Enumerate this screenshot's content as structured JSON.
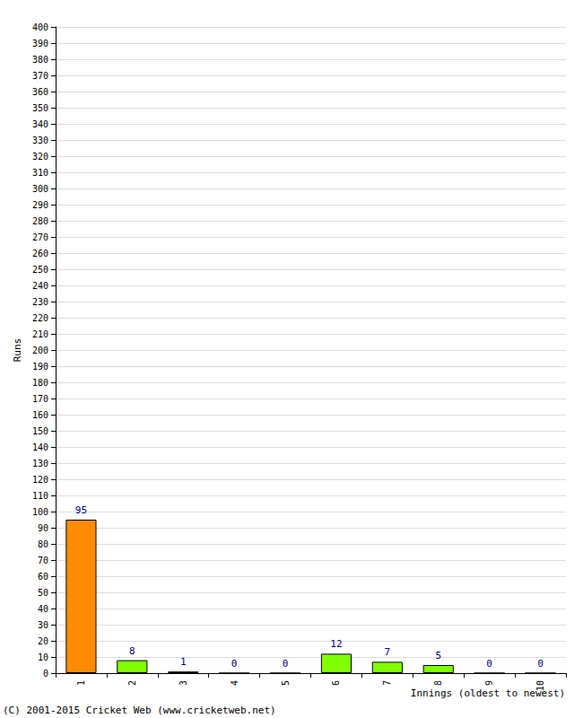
{
  "chart_data": {
    "type": "bar",
    "x_label": "Innings (oldest to newest)",
    "y_label": "Runs",
    "annotations": [
      "(C) 2001-2015 Cricket Web (www.cricketweb.net)"
    ],
    "categories": [
      "1",
      "2",
      "3",
      "4",
      "5",
      "6",
      "7",
      "8",
      "9",
      "10"
    ],
    "values": [
      95,
      8,
      1,
      0,
      0,
      12,
      7,
      5,
      0,
      0
    ],
    "colors": [
      "#ff8c00",
      "#80ff00",
      "#80ff00",
      "#80ff00",
      "#80ff00",
      "#80ff00",
      "#80ff00",
      "#80ff00",
      "#80ff00",
      "#80ff00"
    ],
    "ylim": [
      0,
      400
    ],
    "yticks": [
      0,
      10,
      20,
      30,
      40,
      50,
      60,
      70,
      80,
      90,
      100,
      110,
      120,
      130,
      140,
      150,
      160,
      170,
      180,
      190,
      200,
      210,
      220,
      230,
      240,
      250,
      260,
      270,
      280,
      290,
      300,
      310,
      320,
      330,
      340,
      350,
      360,
      370,
      380,
      390,
      400
    ],
    "grid": true,
    "data_labels": true
  }
}
